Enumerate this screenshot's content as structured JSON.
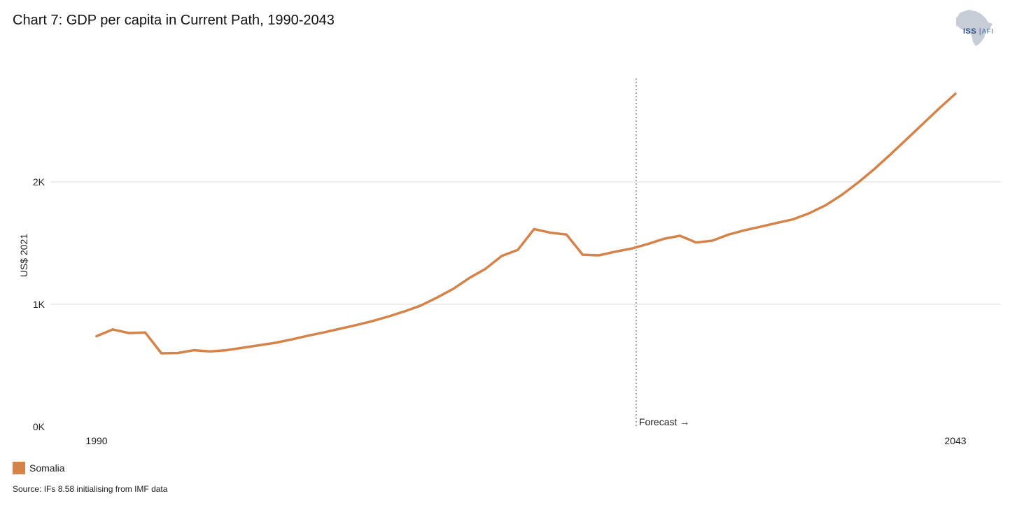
{
  "chart_data": {
    "type": "line",
    "title": "Chart 7: GDP per capita in Current Path, 1990-2043",
    "ylabel": "US$ 2021",
    "xlabel": "",
    "ylim": [
      0,
      2800
    ],
    "xlim": [
      1990,
      2043
    ],
    "y_ticks": [
      {
        "value": 0,
        "label": "0K"
      },
      {
        "value": 1000,
        "label": "1K"
      },
      {
        "value": 2000,
        "label": "2K"
      }
    ],
    "x_ticks": [
      {
        "value": 1990,
        "label": "1990"
      },
      {
        "value": 2043,
        "label": "2043"
      }
    ],
    "forecast_start": 2023.3,
    "forecast_label": "Forecast →",
    "grid": true,
    "legend_position": "bottom-left",
    "series": [
      {
        "name": "Somalia",
        "color": "#d4844a",
        "x": [
          1990,
          1991,
          1992,
          1993,
          1994,
          1995,
          1996,
          1997,
          1998,
          1999,
          2000,
          2001,
          2002,
          2003,
          2004,
          2005,
          2006,
          2007,
          2008,
          2009,
          2010,
          2011,
          2012,
          2013,
          2014,
          2015,
          2016,
          2017,
          2018,
          2019,
          2020,
          2021,
          2022,
          2023,
          2024,
          2025,
          2026,
          2027,
          2028,
          2029,
          2030,
          2031,
          2032,
          2033,
          2034,
          2035,
          2036,
          2037,
          2038,
          2039,
          2040,
          2041,
          2042,
          2043
        ],
        "values": [
          740,
          795,
          765,
          770,
          600,
          602,
          625,
          615,
          625,
          645,
          665,
          685,
          712,
          742,
          770,
          800,
          830,
          862,
          900,
          942,
          990,
          1055,
          1125,
          1215,
          1290,
          1395,
          1445,
          1615,
          1585,
          1570,
          1405,
          1400,
          1430,
          1455,
          1492,
          1535,
          1560,
          1505,
          1520,
          1570,
          1605,
          1635,
          1665,
          1695,
          1745,
          1810,
          1895,
          1995,
          2105,
          2225,
          2350,
          2475,
          2600,
          2720
        ]
      }
    ]
  },
  "legend": {
    "label": "Somalia",
    "color": "#d4844a"
  },
  "source": "Source: IFs 8.58 initialising from IMF data",
  "logo": {
    "text": "ISS",
    "sub": "AFI"
  }
}
